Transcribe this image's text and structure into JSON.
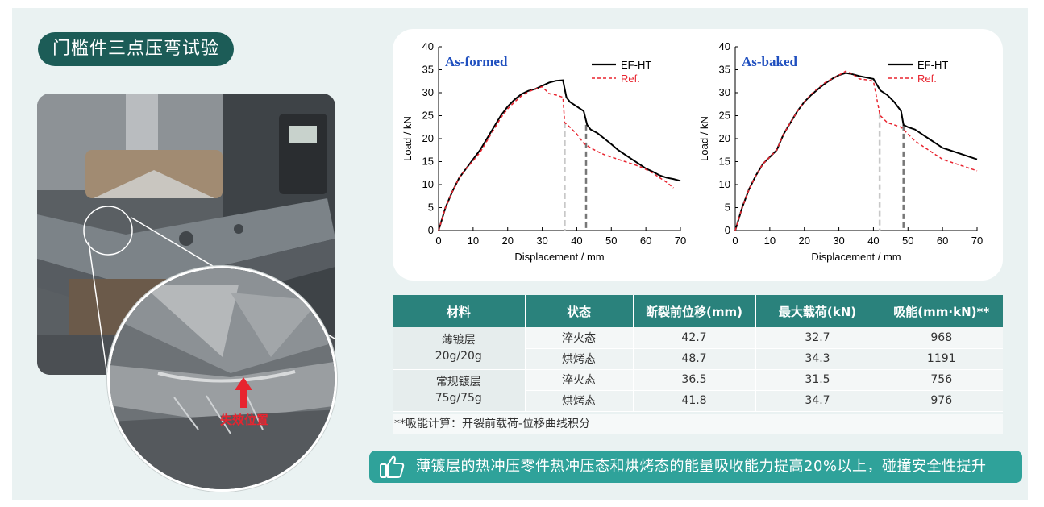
{
  "title": "门槛件三点压弯试验",
  "photo": {
    "failure_label": "失效位置"
  },
  "charts": [
    {
      "panel_label": "As-formed",
      "xlabel": "Displacement / mm",
      "ylabel": "Load / kN",
      "legend": [
        "EF-HT",
        "Ref."
      ],
      "xticks": [
        "0",
        "10",
        "20",
        "30",
        "40",
        "50",
        "60",
        "70"
      ],
      "yticks": [
        "0",
        "5",
        "10",
        "15",
        "20",
        "25",
        "30",
        "35",
        "40"
      ]
    },
    {
      "panel_label": "As-baked",
      "xlabel": "Displacement / mm",
      "ylabel": "Load / kN",
      "legend": [
        "EF-HT",
        "Ref."
      ],
      "xticks": [
        "0",
        "10",
        "20",
        "30",
        "40",
        "50",
        "60",
        "70"
      ],
      "yticks": [
        "0",
        "5",
        "10",
        "15",
        "20",
        "25",
        "30",
        "35",
        "40"
      ]
    }
  ],
  "chart_data": [
    {
      "type": "line",
      "title": "As-formed",
      "xlabel": "Displacement / mm",
      "ylabel": "Load / kN",
      "xlim": [
        0,
        70
      ],
      "ylim": [
        0,
        40
      ],
      "series": [
        {
          "name": "EF-HT",
          "color": "#000000",
          "style": "solid",
          "x": [
            0,
            2,
            4,
            6,
            8,
            10,
            12,
            14,
            16,
            18,
            20,
            22,
            24,
            26,
            28,
            30,
            32,
            34,
            36,
            37,
            38,
            40,
            42,
            43,
            44,
            46,
            48,
            50,
            52,
            54,
            56,
            58,
            60,
            62,
            64,
            66,
            68,
            70
          ],
          "y": [
            0,
            5,
            8.5,
            11.5,
            13.5,
            15.5,
            17.5,
            20,
            22.5,
            25,
            27,
            28.5,
            29.7,
            30.4,
            30.8,
            31.5,
            32.2,
            32.6,
            32.7,
            29,
            28,
            27,
            26,
            23,
            22,
            21.2,
            20,
            18.8,
            17.5,
            16.5,
            15.5,
            14.5,
            13.5,
            12.8,
            12,
            11.5,
            11.2,
            10.8
          ]
        },
        {
          "name": "Ref.",
          "color": "#e8242f",
          "style": "dashed",
          "x": [
            0,
            2,
            4,
            6,
            8,
            10,
            12,
            14,
            16,
            18,
            20,
            22,
            24,
            26,
            28,
            30,
            32,
            34,
            36,
            36.5,
            38,
            40,
            42,
            44,
            46,
            48,
            50,
            52,
            54,
            56,
            58,
            60,
            62,
            64,
            66,
            68
          ],
          "y": [
            0,
            5,
            8.5,
            11.5,
            13.5,
            15.2,
            17,
            19.5,
            22,
            24.5,
            26.5,
            28,
            29.3,
            30.2,
            30.8,
            31.3,
            29.8,
            29.5,
            29,
            23.5,
            22.5,
            21,
            19,
            18,
            17.2,
            16.5,
            16,
            15.5,
            15,
            14.5,
            14,
            13.3,
            12.5,
            11.5,
            10.5,
            9.3
          ]
        }
      ],
      "fracture_markers": [
        36.5,
        42.7
      ]
    },
    {
      "type": "line",
      "title": "As-baked",
      "xlabel": "Displacement / mm",
      "ylabel": "Load / kN",
      "xlim": [
        0,
        70
      ],
      "ylim": [
        0,
        40
      ],
      "series": [
        {
          "name": "EF-HT",
          "color": "#000000",
          "style": "solid",
          "x": [
            0,
            2,
            4,
            6,
            8,
            10,
            12,
            14,
            16,
            18,
            20,
            22,
            24,
            26,
            28,
            30,
            32,
            34,
            36,
            38,
            40,
            42,
            44,
            46,
            48,
            48.7,
            50,
            52,
            54,
            56,
            58,
            60,
            62,
            64,
            66,
            68,
            70
          ],
          "y": [
            0,
            5,
            9,
            12,
            14.5,
            16,
            17.5,
            21,
            23.5,
            26,
            28,
            29.5,
            30.8,
            32,
            33,
            33.8,
            34.3,
            34,
            33.6,
            33.3,
            33,
            30.5,
            29.5,
            28,
            26,
            23,
            22.5,
            22,
            21,
            20,
            19,
            18,
            17.5,
            17,
            16.5,
            16,
            15.5
          ]
        },
        {
          "name": "Ref.",
          "color": "#e8242f",
          "style": "dashed",
          "x": [
            0,
            2,
            4,
            6,
            8,
            10,
            12,
            14,
            16,
            18,
            20,
            22,
            24,
            26,
            28,
            30,
            32,
            34,
            36,
            38,
            40,
            41.8,
            42,
            44,
            46,
            48,
            50,
            52,
            54,
            56,
            58,
            60,
            62,
            64,
            66,
            68,
            70
          ],
          "y": [
            0,
            5,
            9,
            12,
            14.5,
            16,
            17.5,
            21,
            23.5,
            26,
            28,
            29.7,
            31,
            32.2,
            33,
            33.8,
            34.7,
            34,
            33,
            32.8,
            32.5,
            25.5,
            25,
            23.5,
            23,
            22.5,
            21,
            19.5,
            18.5,
            17.5,
            16.5,
            15.5,
            15,
            14.5,
            14,
            13.5,
            13
          ]
        }
      ],
      "fracture_markers": [
        41.8,
        48.7
      ]
    }
  ],
  "table": {
    "headers": [
      "材料",
      "状态",
      "断裂前位移(mm)",
      "最大载荷(kN)",
      "吸能(mm·kN)**"
    ],
    "groups": [
      {
        "material_line1": "薄镀层",
        "material_line2": "20g/20g",
        "rows": [
          {
            "state": "淬火态",
            "displacement": "42.7",
            "max_load": "32.7",
            "energy": "968"
          },
          {
            "state": "烘烤态",
            "displacement": "48.7",
            "max_load": "34.3",
            "energy": "1191"
          }
        ]
      },
      {
        "material_line1": "常规镀层",
        "material_line2": "75g/75g",
        "rows": [
          {
            "state": "淬火态",
            "displacement": "36.5",
            "max_load": "31.5",
            "energy": "756"
          },
          {
            "state": "烘烤态",
            "displacement": "41.8",
            "max_load": "34.7",
            "energy": "976"
          }
        ]
      }
    ],
    "footnote": "**吸能计算：开裂前载荷-位移曲线积分"
  },
  "conclusion": {
    "icon": "thumbs-up-icon",
    "text": "薄镀层的热冲压零件热冲压态和烘烤态的能量吸收能力提高20%以上，碰撞安全性提升"
  },
  "colors": {
    "title_bg": "#1c5c57",
    "table_header": "#2a827c",
    "conclusion_bg": "#2fa29a",
    "accent_red": "#e8242f",
    "panel_label": "#1f4fbf"
  }
}
